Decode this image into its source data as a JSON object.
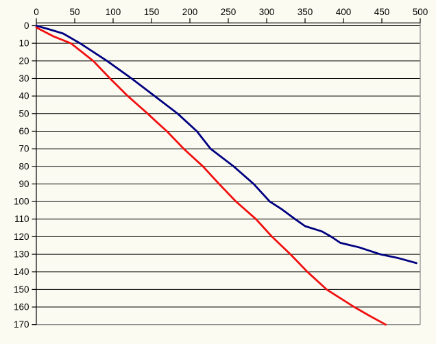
{
  "page": {
    "background_color": "#fbfbf2"
  },
  "chart_data": {
    "type": "line",
    "title": "",
    "subtitle": "",
    "legend": "none",
    "x_axis": {
      "position": "top",
      "min": 0,
      "max": 500,
      "tick_step": 50,
      "tick_values": [
        0,
        50,
        100,
        150,
        200,
        250,
        300,
        350,
        400,
        450,
        500
      ],
      "tick_labels": [
        "0",
        "50",
        "100",
        "150",
        "200",
        "250",
        "300",
        "350",
        "400",
        "450",
        "500"
      ],
      "label": ""
    },
    "y_axis": {
      "position": "left",
      "min": 0,
      "max": 170,
      "inverted": true,
      "tick_step": 10,
      "tick_values": [
        0,
        10,
        20,
        30,
        40,
        50,
        60,
        70,
        80,
        90,
        100,
        110,
        120,
        130,
        140,
        150,
        160,
        170
      ],
      "tick_labels": [
        "0",
        "10",
        "20",
        "30",
        "40",
        "50",
        "60",
        "70",
        "80",
        "90",
        "100",
        "110",
        "120",
        "130",
        "140",
        "150",
        "160",
        "170"
      ],
      "label": ""
    },
    "grid": {
      "horizontal": true,
      "vertical": false,
      "color": "#000000"
    },
    "plot_border": {
      "bottom": true,
      "right": true,
      "color": "#8f8f8f"
    },
    "axis_color": "#000000",
    "series": [
      {
        "name": "dark-blue-series",
        "color": "#000080",
        "stroke_width": 2.8,
        "points": [
          [
            0,
            0
          ],
          [
            20,
            2.5
          ],
          [
            35,
            4.5
          ],
          [
            57,
            10
          ],
          [
            92,
            20
          ],
          [
            124,
            30
          ],
          [
            154,
            40
          ],
          [
            184,
            50
          ],
          [
            209,
            60
          ],
          [
            227,
            70
          ],
          [
            257,
            80
          ],
          [
            283,
            90
          ],
          [
            304,
            100
          ],
          [
            320,
            104.5
          ],
          [
            337,
            110
          ],
          [
            350,
            114
          ],
          [
            372,
            117
          ],
          [
            384,
            120
          ],
          [
            396,
            123.5
          ],
          [
            420,
            126
          ],
          [
            448,
            130
          ],
          [
            470,
            132
          ],
          [
            495,
            135
          ]
        ]
      },
      {
        "name": "red-series",
        "color": "#f01010",
        "stroke_width": 2.8,
        "points": [
          [
            0,
            1
          ],
          [
            22,
            6
          ],
          [
            45,
            10
          ],
          [
            74,
            20
          ],
          [
            96,
            30
          ],
          [
            119,
            40
          ],
          [
            145,
            50
          ],
          [
            156,
            54.5
          ],
          [
            170,
            60
          ],
          [
            192,
            70
          ],
          [
            217,
            80
          ],
          [
            238,
            90
          ],
          [
            260,
            100
          ],
          [
            286,
            110
          ],
          [
            307,
            120
          ],
          [
            331,
            130
          ],
          [
            353,
            140
          ],
          [
            378,
            150
          ],
          [
            414,
            160
          ],
          [
            434,
            165
          ],
          [
            455,
            170
          ]
        ]
      }
    ]
  }
}
